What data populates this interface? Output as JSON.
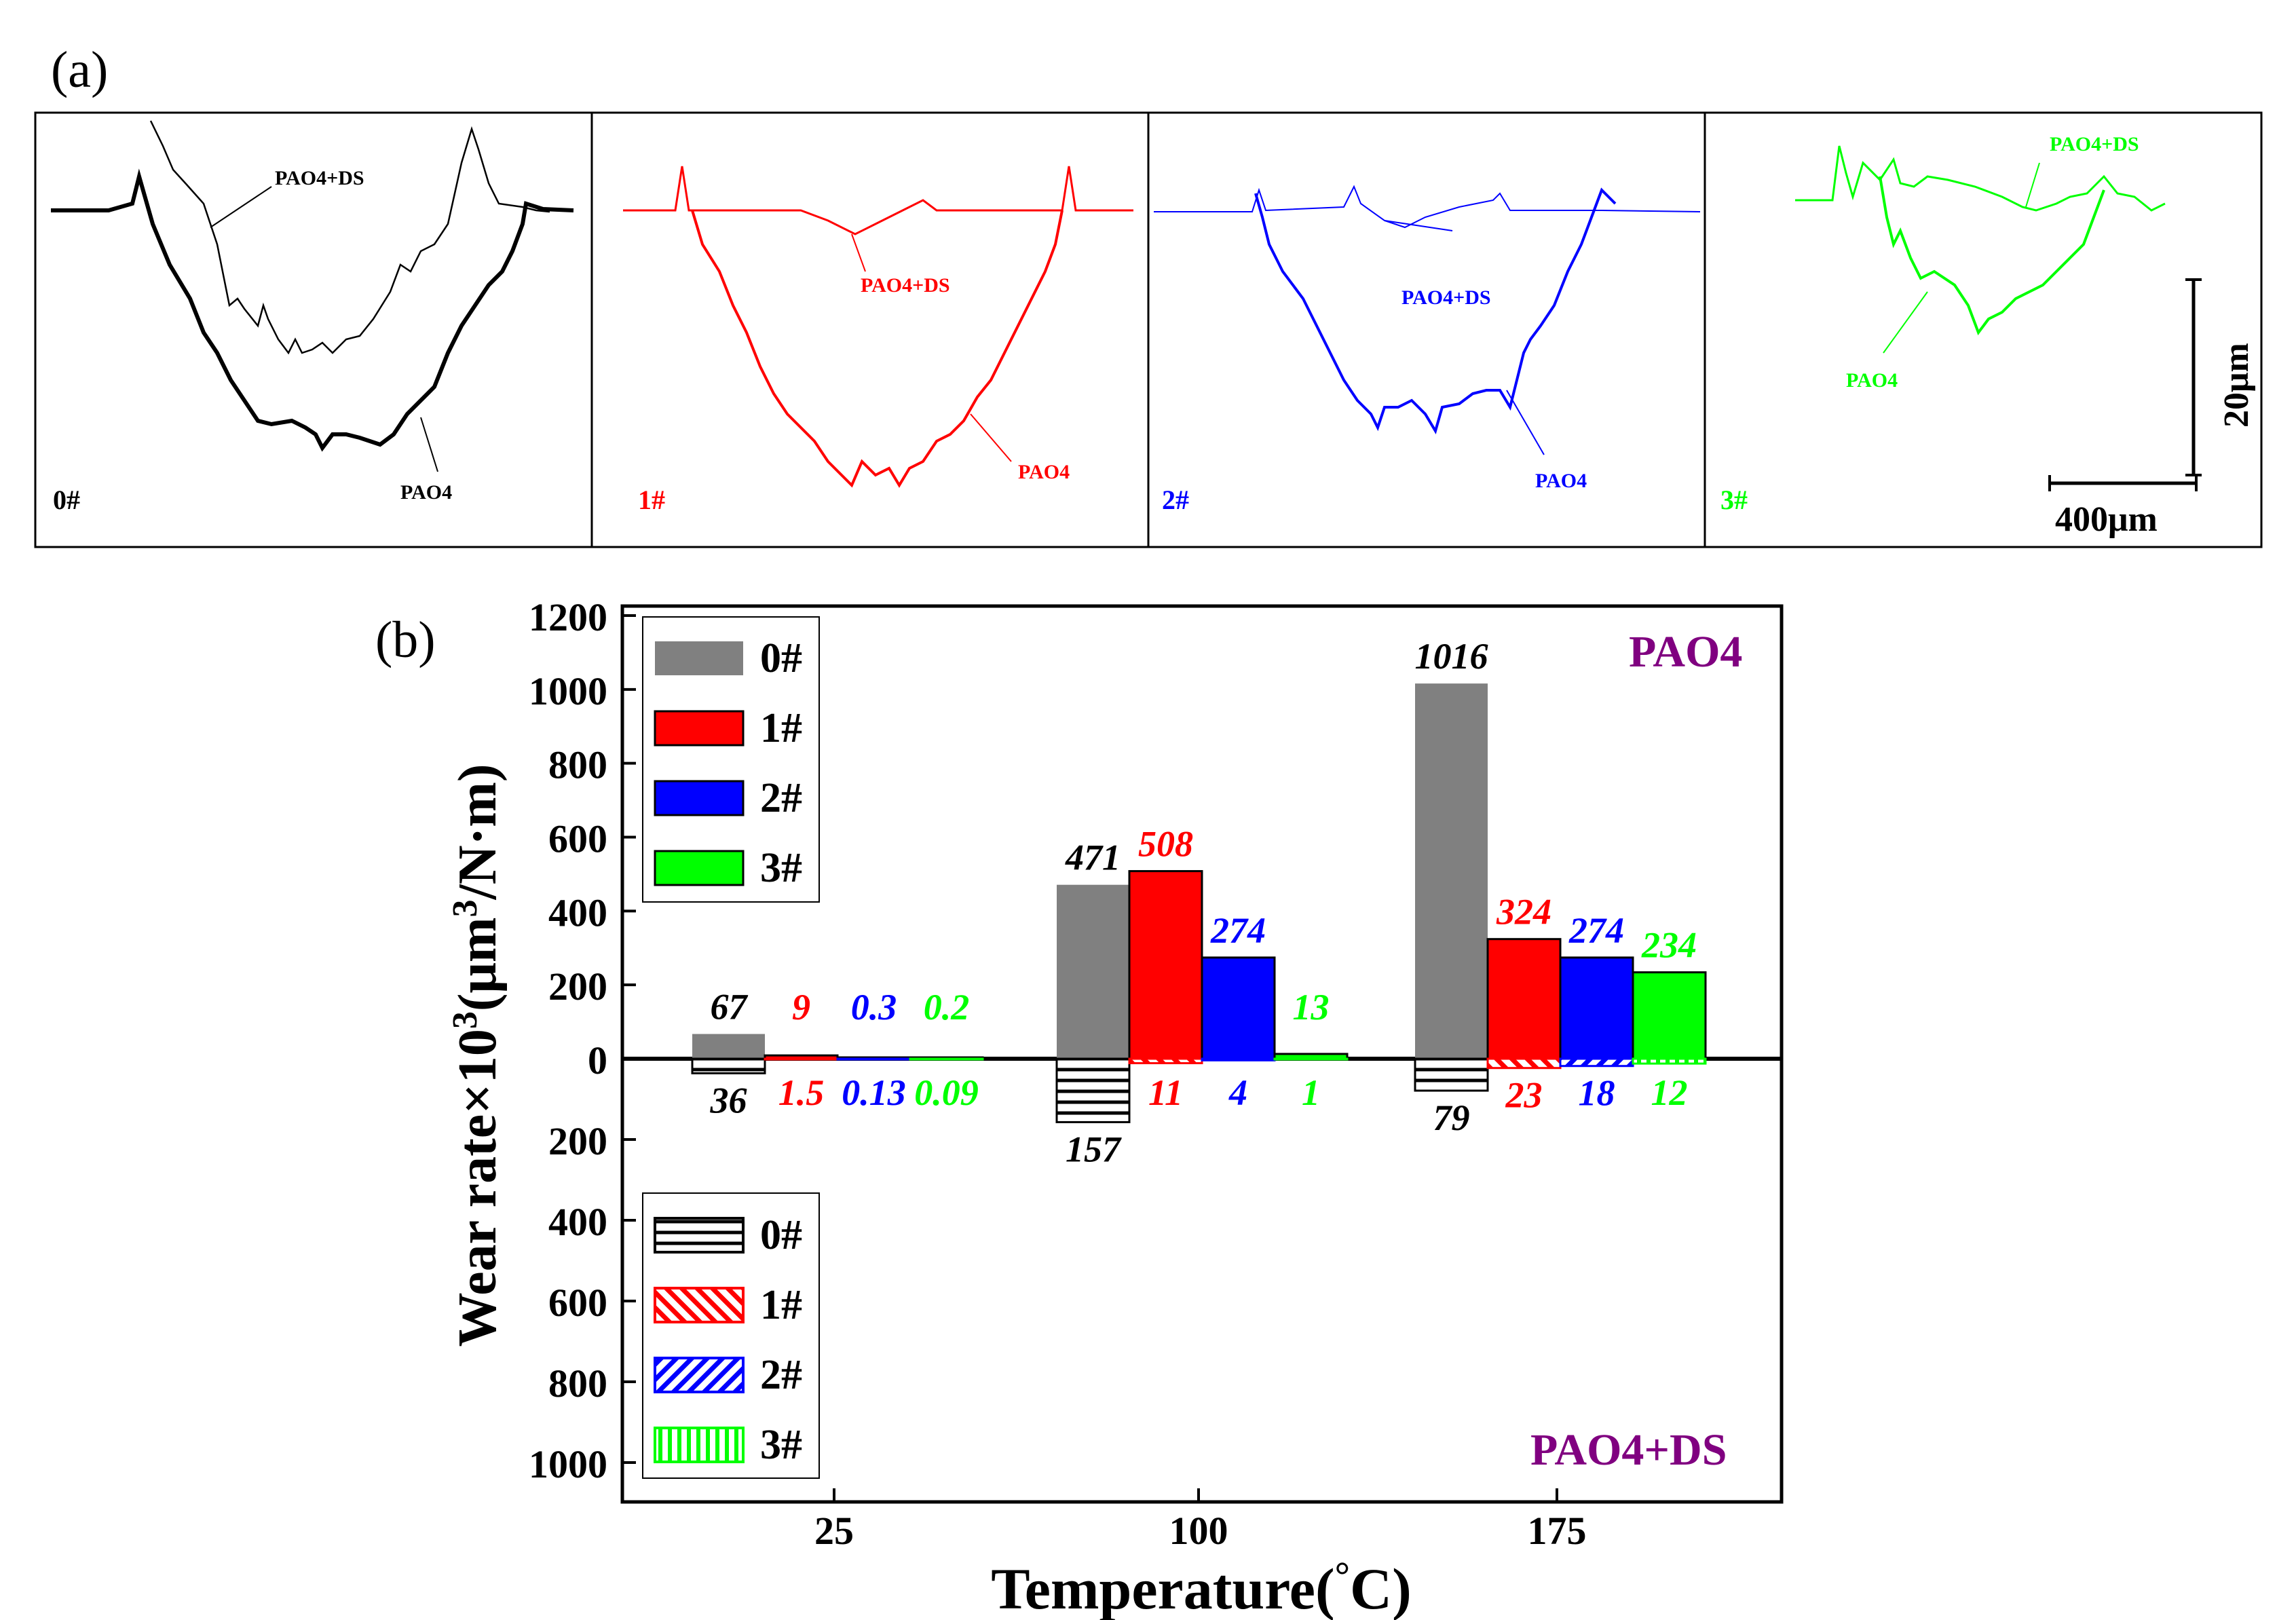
{
  "panel_a": {
    "label": "(a)",
    "scale_vertical": "20μm",
    "scale_horizontal": "400μm",
    "panels": [
      {
        "id": "0#",
        "color": "#000000",
        "upper_label": "PAO4+DS",
        "lower_label": "PAO4"
      },
      {
        "id": "1#",
        "color": "#ff0000",
        "upper_label": "PAO4+DS",
        "lower_label": "PAO4"
      },
      {
        "id": "2#",
        "color": "#0000ff",
        "upper_label": "PAO4+DS",
        "lower_label": "PAO4"
      },
      {
        "id": "3#",
        "color": "#00ff00",
        "upper_label": "PAO4+DS",
        "lower_label": "PAO4"
      }
    ]
  },
  "panel_b": {
    "label": "(b)",
    "top_region_label": "PAO4",
    "bottom_region_label": "PAO4+DS",
    "region_label_color": "#800080",
    "y_ticks_upper": [
      "0",
      "200",
      "400",
      "600",
      "800",
      "1000",
      "1200"
    ],
    "y_ticks_lower": [
      "200",
      "400",
      "600",
      "800",
      "1000"
    ],
    "xlabel_main": "Temperature(",
    "xlabel_degree": "°",
    "xlabel_unit": "C)",
    "ylabel_part1": "Wear rate×10",
    "ylabel_sup": "3",
    "ylabel_part2": "(μm",
    "ylabel_sup2": "3",
    "ylabel_part3": "/N·m)"
  },
  "chart_data": {
    "type": "bar",
    "title": "",
    "xlabel": "Temperature(°C)",
    "ylabel": "Wear rate×10³(μm³/N·m)",
    "categories": [
      "25",
      "100",
      "175"
    ],
    "ylim_upper": [
      0,
      1200
    ],
    "ylim_lower": [
      0,
      1100
    ],
    "legend_upper": "top-left",
    "legend_lower": "bottom-left",
    "series_pao4": [
      {
        "name": "0#",
        "color": "#808080",
        "values": [
          67,
          471,
          1016
        ],
        "labels": [
          "67",
          "471",
          "1016"
        ]
      },
      {
        "name": "1#",
        "color": "#ff0000",
        "values": [
          9,
          508,
          324
        ],
        "labels": [
          "9",
          "508",
          "324"
        ]
      },
      {
        "name": "2#",
        "color": "#0000ff",
        "values": [
          0.3,
          274,
          274
        ],
        "labels": [
          "0.3",
          "274",
          "274"
        ]
      },
      {
        "name": "3#",
        "color": "#00ff00",
        "values": [
          0.2,
          13,
          234
        ],
        "labels": [
          "0.2",
          "13",
          "234"
        ]
      }
    ],
    "series_pao4_ds": [
      {
        "name": "0#",
        "color": "#000000",
        "pattern": "horizontal",
        "values": [
          36,
          157,
          79
        ],
        "labels": [
          "36",
          "157",
          "79"
        ]
      },
      {
        "name": "1#",
        "color": "#ff0000",
        "pattern": "diagonal-down",
        "values": [
          1.5,
          11,
          23
        ],
        "labels": [
          "1.5",
          "11",
          "23"
        ]
      },
      {
        "name": "2#",
        "color": "#0000ff",
        "pattern": "diagonal-up",
        "values": [
          0.13,
          4,
          18
        ],
        "labels": [
          "0.13",
          "4",
          "18"
        ]
      },
      {
        "name": "3#",
        "color": "#00ff00",
        "pattern": "vertical",
        "values": [
          0.09,
          1,
          12
        ],
        "labels": [
          "0.09",
          "1",
          "12"
        ]
      }
    ]
  }
}
